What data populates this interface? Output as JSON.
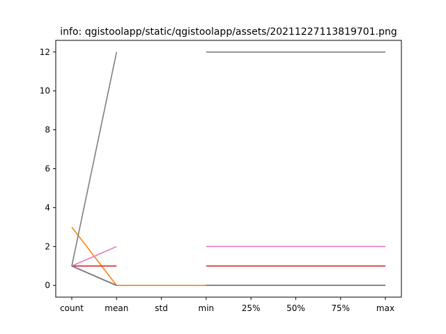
{
  "chart_data": {
    "type": "line",
    "title": "info: qgistoolapp/static/qgistoolapp/assets/20211227113819701.png",
    "categories": [
      "count",
      "mean",
      "std",
      "min",
      "25%",
      "50%",
      "75%",
      "max"
    ],
    "yticks": [
      "0",
      "2",
      "4",
      "6",
      "8",
      "10",
      "12"
    ],
    "ylim": [
      -0.6,
      12.6
    ],
    "grid": false,
    "series": [
      {
        "color": "#1f77b4",
        "values": [
          1,
          0,
          null,
          0,
          0,
          0,
          0,
          0
        ]
      },
      {
        "color": "#ff7f0e",
        "values": [
          3,
          0,
          0,
          0,
          null,
          null,
          null,
          null
        ]
      },
      {
        "color": "#2ca02c",
        "values": [
          1,
          0,
          null,
          0,
          0,
          0,
          0,
          0
        ]
      },
      {
        "color": "#d62728",
        "values": [
          1,
          1,
          null,
          1,
          1,
          1,
          1,
          1
        ]
      },
      {
        "color": "#9467bd",
        "values": [
          1,
          0,
          null,
          0,
          0,
          0,
          0,
          0
        ]
      },
      {
        "color": "#8c564b",
        "values": [
          1,
          0,
          null,
          0,
          0,
          0,
          0,
          0
        ]
      },
      {
        "color": "#e377c2",
        "values": [
          1,
          2,
          null,
          2,
          2,
          2,
          2,
          2
        ]
      },
      {
        "color": "#7f7f7f",
        "values": [
          1,
          12,
          null,
          12,
          12,
          12,
          12,
          12
        ]
      },
      {
        "color": "#7f7f7f",
        "values": [
          1,
          0,
          null,
          0,
          0,
          0,
          0,
          0
        ]
      }
    ]
  }
}
